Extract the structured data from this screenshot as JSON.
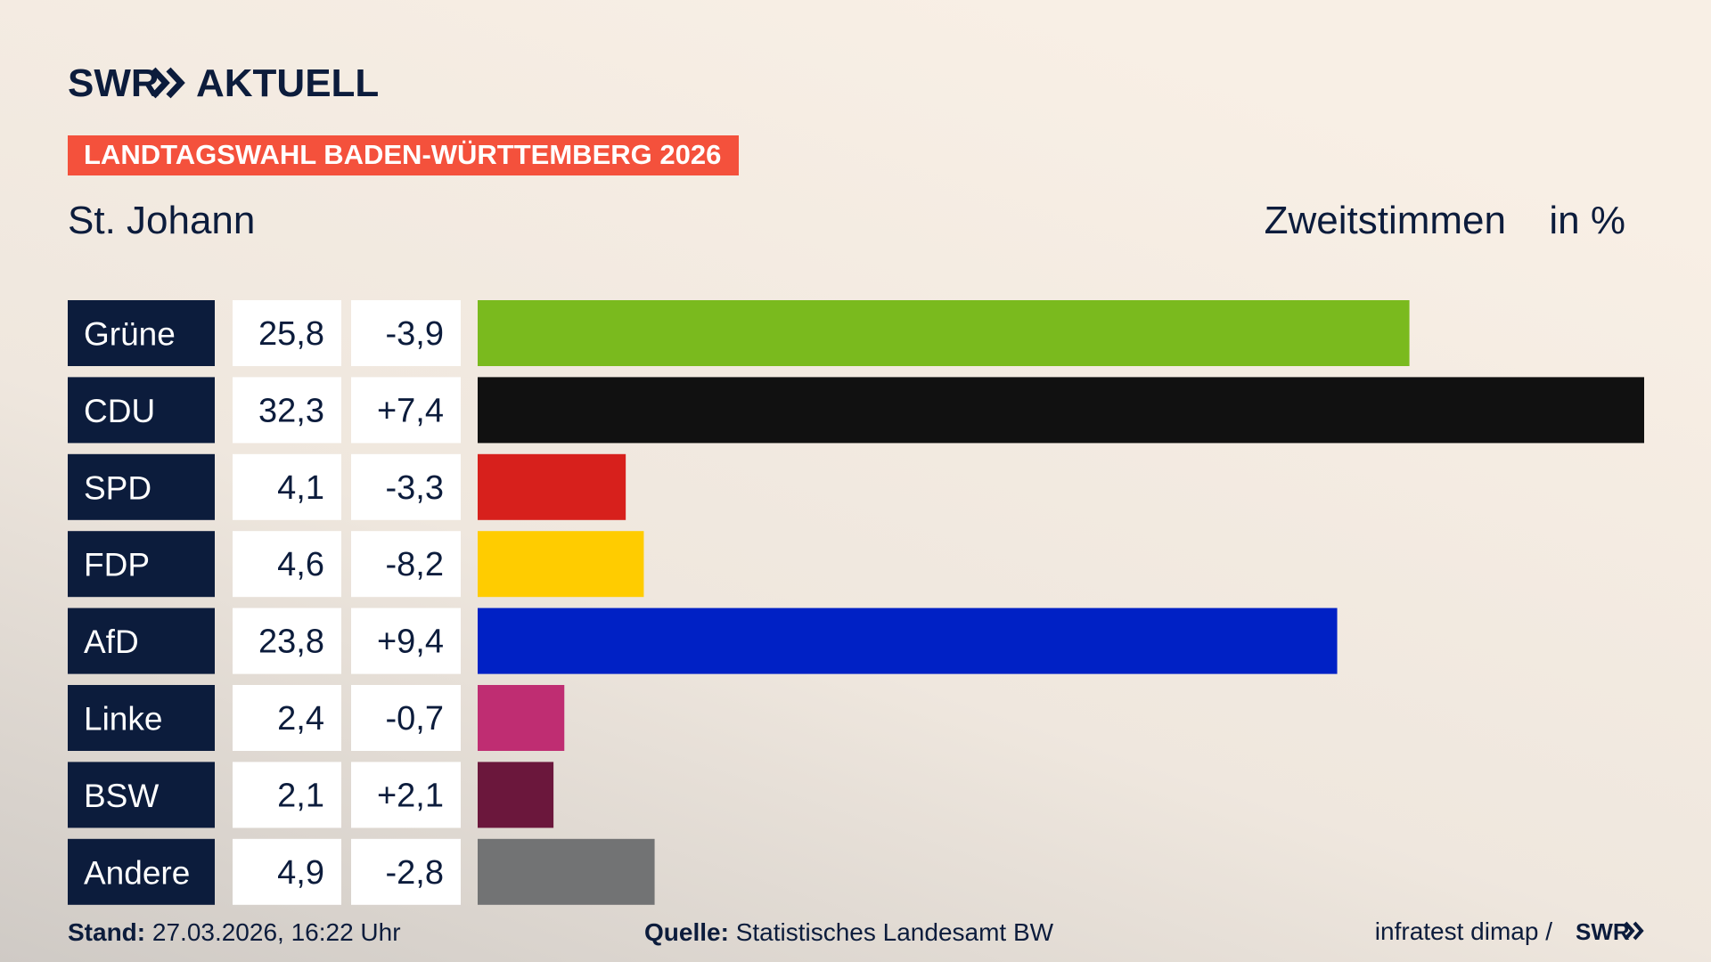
{
  "chart_data": {
    "type": "bar",
    "brand": "SWR",
    "brand_suffix": "AKTUELL",
    "banner": "LANDTAGSWAHL BADEN-WÜRTTEMBERG 2026",
    "title": "St. Johann",
    "subtitle": "Zweitstimmen",
    "unit": "in %",
    "categories": [
      "Grüne",
      "CDU",
      "SPD",
      "FDP",
      "AfD",
      "Linke",
      "BSW",
      "Andere"
    ],
    "values": [
      25.8,
      32.3,
      4.1,
      4.6,
      23.8,
      2.4,
      2.1,
      4.9
    ],
    "value_labels": [
      "25,8",
      "32,3",
      "4,1",
      "4,6",
      "23,8",
      "2,4",
      "2,1",
      "4,9"
    ],
    "changes": [
      -3.9,
      7.4,
      -3.3,
      -8.2,
      9.4,
      -0.7,
      2.1,
      -2.8
    ],
    "change_labels": [
      "-3,9",
      "+7,4",
      "-3,3",
      "-8,2",
      "+9,4",
      "-0,7",
      "+2,1",
      "-2,8"
    ],
    "colors": [
      "#7aba1e",
      "#111111",
      "#d7201c",
      "#ffcc00",
      "#0021c5",
      "#bf2d72",
      "#6b173c",
      "#727374"
    ],
    "xlim": [
      0,
      32.3
    ],
    "footer": {
      "stand_label": "Stand:",
      "stand": "27.03.2026, 16:22 Uhr",
      "source_label": "Quelle:",
      "source": "Statistisches Landesamt BW",
      "credit": "infratest dimap /"
    }
  }
}
